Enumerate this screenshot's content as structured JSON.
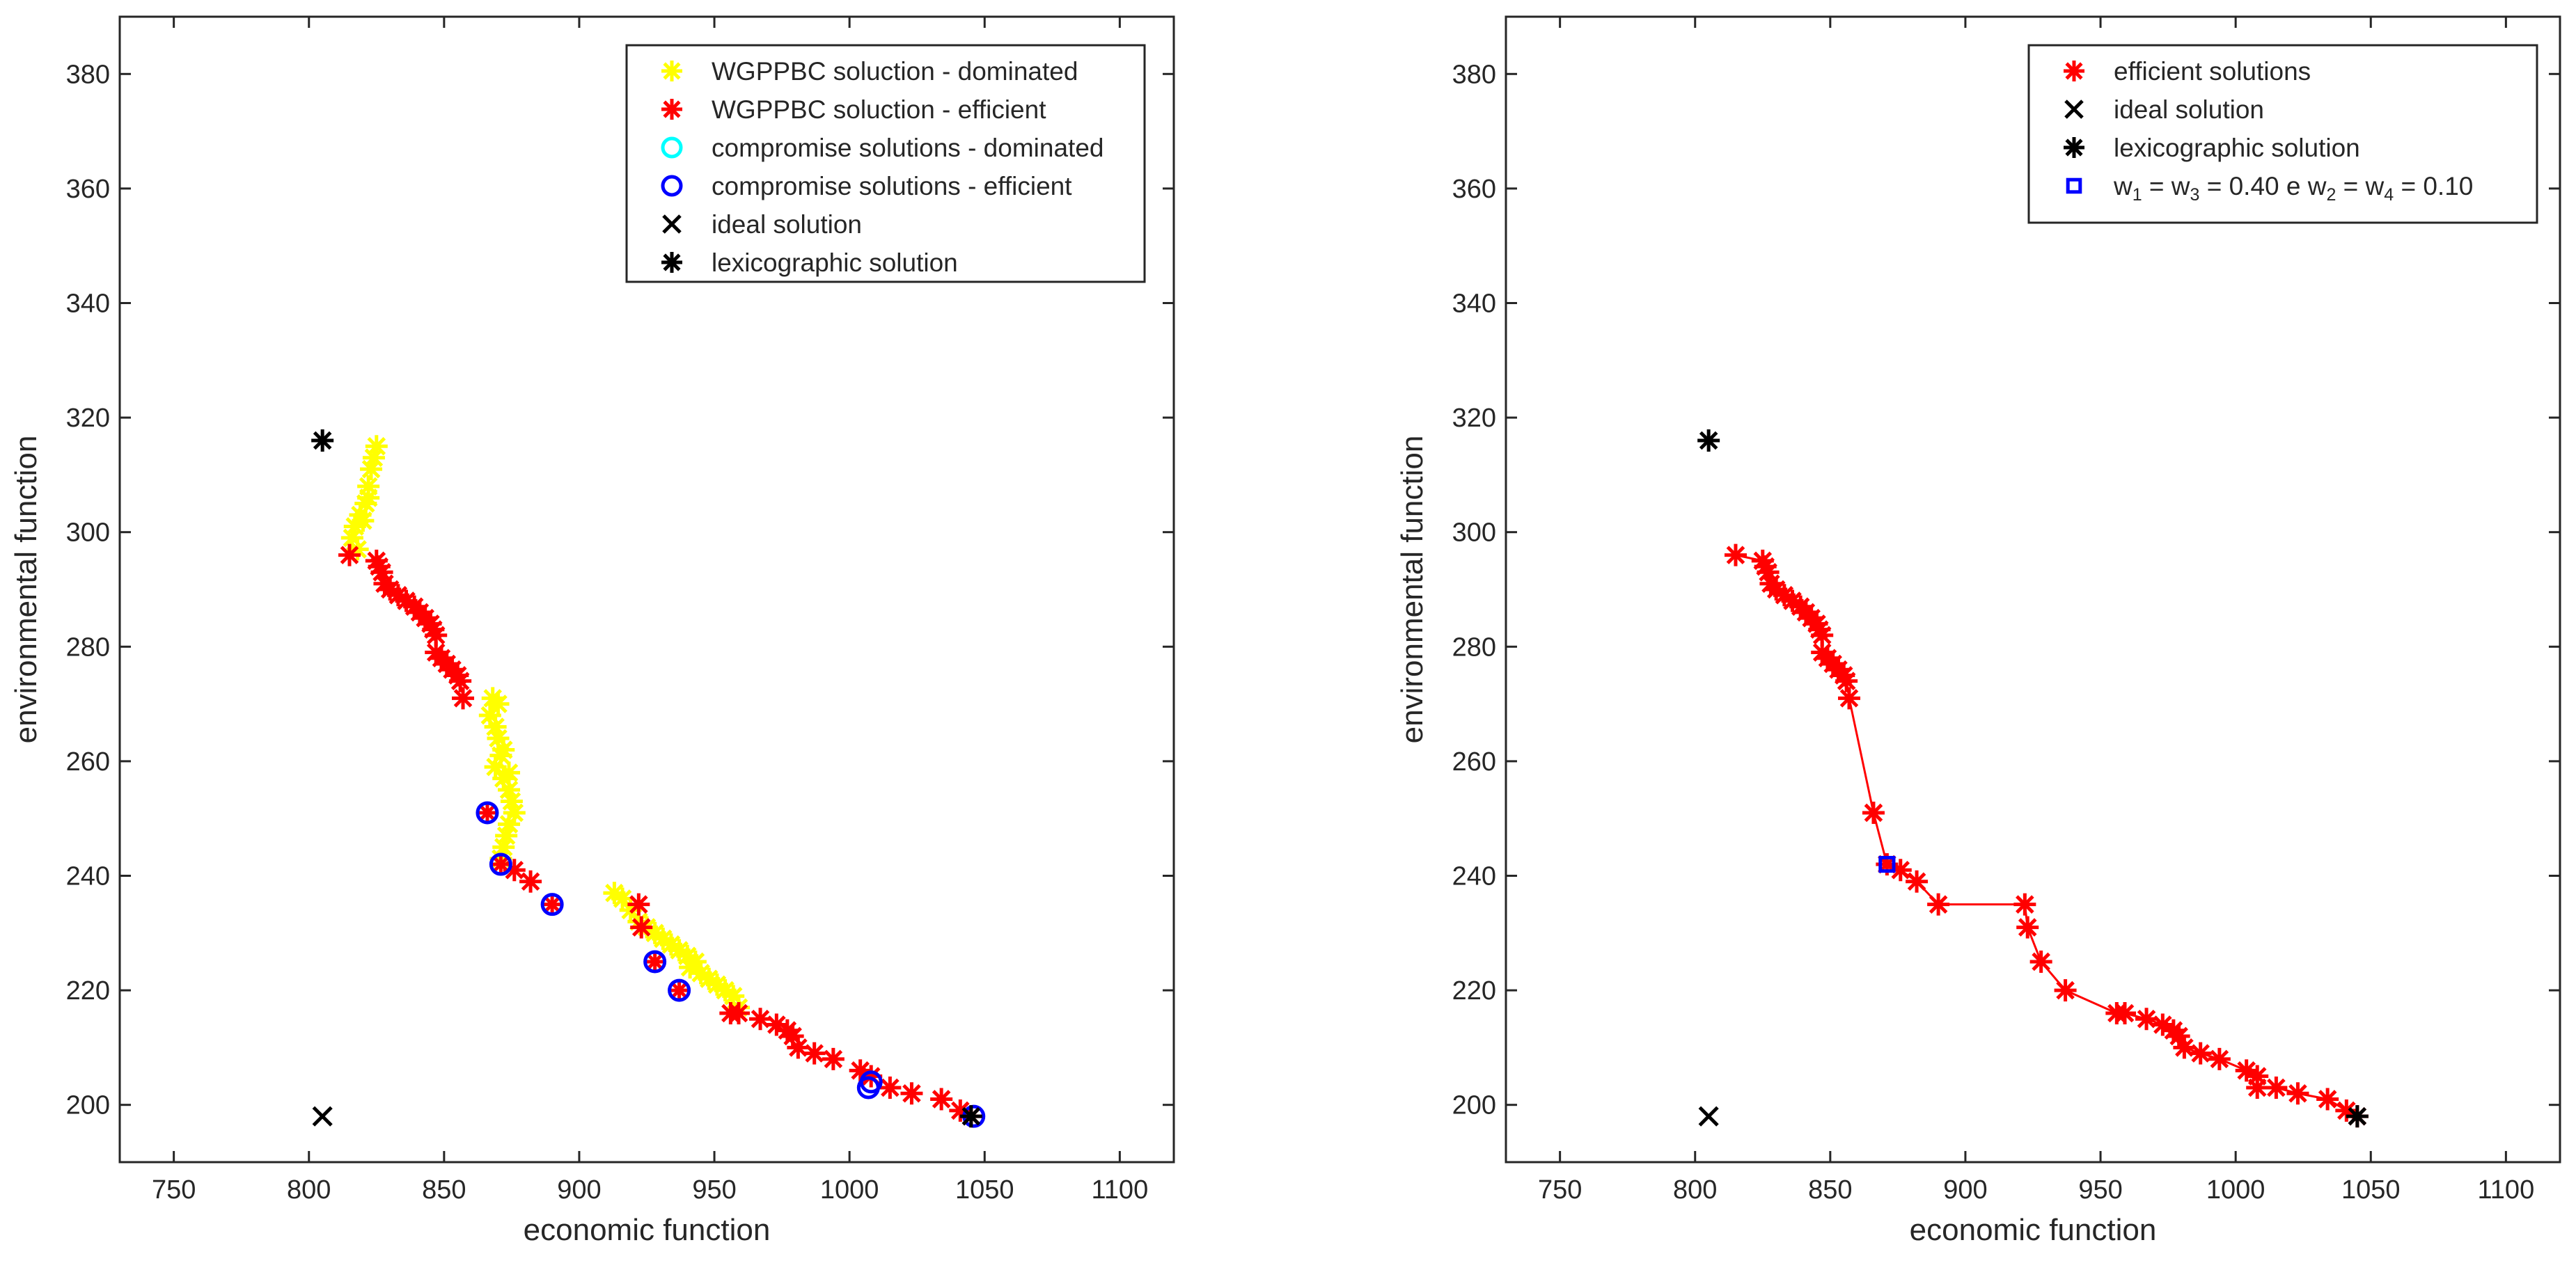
{
  "chart_data": [
    {
      "type": "scatter",
      "xlabel": "economic function",
      "ylabel": "environmental function",
      "xlim": [
        730,
        1120
      ],
      "ylim": [
        190,
        390
      ],
      "xticks": [
        750,
        800,
        850,
        900,
        950,
        1000,
        1050,
        1100
      ],
      "yticks": [
        200,
        220,
        240,
        260,
        280,
        300,
        320,
        340,
        360,
        380
      ],
      "legend_position": "top-right",
      "series": [
        {
          "name": "WGPPBC soluction - dominated",
          "marker": "asterisk",
          "color": "#ffff00",
          "points": [
            [
              825,
              315
            ],
            [
              823,
              311
            ],
            [
              822,
              308
            ],
            [
              821,
              305
            ],
            [
              819,
              303
            ],
            [
              817,
              301
            ],
            [
              816,
              299
            ],
            [
              818,
              297
            ],
            [
              820,
              302
            ],
            [
              822,
              306
            ],
            [
              824,
              313
            ],
            [
              868,
              271
            ],
            [
              867,
              268
            ],
            [
              869,
              266
            ],
            [
              870,
              264
            ],
            [
              871,
              261
            ],
            [
              869,
              259
            ],
            [
              872,
              257
            ],
            [
              874,
              255
            ],
            [
              875,
              253
            ],
            [
              876,
              251
            ],
            [
              874,
              249
            ],
            [
              873,
              247
            ],
            [
              872,
              245
            ],
            [
              871,
              243
            ],
            [
              870,
              270
            ],
            [
              872,
              262
            ],
            [
              874,
              258
            ],
            [
              913,
              237
            ],
            [
              916,
              236
            ],
            [
              919,
              234
            ],
            [
              922,
              232
            ],
            [
              925,
              231
            ],
            [
              928,
              230
            ],
            [
              931,
              229
            ],
            [
              934,
              228
            ],
            [
              937,
              227
            ],
            [
              940,
              226
            ],
            [
              943,
              225
            ],
            [
              941,
              224
            ],
            [
              945,
              223
            ],
            [
              948,
              222
            ],
            [
              951,
              221
            ],
            [
              954,
              220
            ],
            [
              957,
              219
            ],
            [
              959,
              217
            ]
          ]
        },
        {
          "name": "WGPPBC soluction - efficient",
          "marker": "asterisk",
          "color": "#ff0000",
          "points": [
            [
              815,
              296
            ],
            [
              825,
              295
            ],
            [
              826,
              294
            ],
            [
              827,
              293
            ],
            [
              828,
              291
            ],
            [
              830,
              290
            ],
            [
              833,
              289
            ],
            [
              836,
              288
            ],
            [
              839,
              287
            ],
            [
              841,
              286
            ],
            [
              843,
              285
            ],
            [
              845,
              284
            ],
            [
              846,
              283
            ],
            [
              847,
              282
            ],
            [
              847,
              279
            ],
            [
              849,
              278
            ],
            [
              851,
              277
            ],
            [
              853,
              276
            ],
            [
              855,
              275
            ],
            [
              856,
              274
            ],
            [
              857,
              271
            ],
            [
              866,
              251
            ],
            [
              871,
              242
            ],
            [
              876,
              241
            ],
            [
              882,
              239
            ],
            [
              890,
              235
            ],
            [
              922,
              235
            ],
            [
              923,
              231
            ],
            [
              928,
              225
            ],
            [
              937,
              220
            ],
            [
              956,
              216
            ],
            [
              959,
              216
            ],
            [
              967,
              215
            ],
            [
              973,
              214
            ],
            [
              977,
              213
            ],
            [
              979,
              212
            ],
            [
              981,
              210
            ],
            [
              987,
              209
            ],
            [
              994,
              208
            ],
            [
              1004,
              206
            ],
            [
              1008,
              205
            ],
            [
              1015,
              203
            ],
            [
              1023,
              202
            ],
            [
              1034,
              201
            ],
            [
              1041,
              199
            ],
            [
              1045,
              198
            ]
          ]
        },
        {
          "name": "compromise solutions - dominated",
          "marker": "circle",
          "color": "#00ffff",
          "points": []
        },
        {
          "name": "compromise solutions - efficient",
          "marker": "circle",
          "color": "#0000ff",
          "points": [
            [
              866,
              251
            ],
            [
              871,
              242
            ],
            [
              890,
              235
            ],
            [
              928,
              225
            ],
            [
              937,
              220
            ],
            [
              1007,
              203
            ],
            [
              1008,
              204
            ],
            [
              1046,
              198
            ]
          ]
        },
        {
          "name": "ideal solution",
          "marker": "x",
          "color": "#000000",
          "points": [
            [
              805,
              198
            ]
          ]
        },
        {
          "name": "lexicographic solution",
          "marker": "asterisk",
          "color": "#000000",
          "points": [
            [
              805,
              316
            ],
            [
              1045,
              198
            ]
          ]
        }
      ]
    },
    {
      "type": "line",
      "xlabel": "economic function",
      "ylabel": "environmental function",
      "xlim": [
        730,
        1120
      ],
      "ylim": [
        190,
        390
      ],
      "xticks": [
        750,
        800,
        850,
        900,
        950,
        1000,
        1050,
        1100
      ],
      "yticks": [
        200,
        220,
        240,
        260,
        280,
        300,
        320,
        340,
        360,
        380
      ],
      "legend_position": "top-right",
      "series": [
        {
          "name": "efficient solutions",
          "marker": "asterisk",
          "color": "#ff0000",
          "connected": true,
          "points": [
            [
              815,
              296
            ],
            [
              825,
              295
            ],
            [
              826,
              294
            ],
            [
              827,
              293
            ],
            [
              828,
              291
            ],
            [
              830,
              290
            ],
            [
              833,
              289
            ],
            [
              836,
              288
            ],
            [
              839,
              287
            ],
            [
              841,
              286
            ],
            [
              843,
              285
            ],
            [
              845,
              284
            ],
            [
              846,
              283
            ],
            [
              847,
              282
            ],
            [
              847,
              279
            ],
            [
              849,
              278
            ],
            [
              851,
              277
            ],
            [
              853,
              276
            ],
            [
              855,
              275
            ],
            [
              856,
              274
            ],
            [
              857,
              271
            ],
            [
              866,
              251
            ],
            [
              871,
              242
            ],
            [
              876,
              241
            ],
            [
              882,
              239
            ],
            [
              890,
              235
            ],
            [
              922,
              235
            ],
            [
              923,
              231
            ],
            [
              928,
              225
            ],
            [
              937,
              220
            ],
            [
              956,
              216
            ],
            [
              959,
              216
            ],
            [
              967,
              215
            ],
            [
              973,
              214
            ],
            [
              977,
              213
            ],
            [
              979,
              212
            ],
            [
              981,
              210
            ],
            [
              987,
              209
            ],
            [
              994,
              208
            ],
            [
              1004,
              206
            ],
            [
              1008,
              205
            ],
            [
              1008,
              203
            ],
            [
              1015,
              203
            ],
            [
              1023,
              202
            ],
            [
              1034,
              201
            ],
            [
              1041,
              199
            ],
            [
              1045,
              198
            ]
          ]
        },
        {
          "name": "ideal solution",
          "marker": "x",
          "color": "#000000",
          "points": [
            [
              805,
              198
            ]
          ]
        },
        {
          "name": "lexicographic solution",
          "marker": "asterisk",
          "color": "#000000",
          "points": [
            [
              805,
              316
            ],
            [
              1045,
              198
            ]
          ]
        },
        {
          "name": "w1 = w3 = 0.40 e w2 = w4 = 0.10",
          "legend_parts": [
            "w",
            "1",
            " = w",
            "3",
            " = 0.40 e w",
            "2",
            " = w",
            "4",
            " = 0.10"
          ],
          "marker": "square",
          "color": "#0000ff",
          "points": [
            [
              871,
              242
            ]
          ]
        }
      ]
    }
  ]
}
